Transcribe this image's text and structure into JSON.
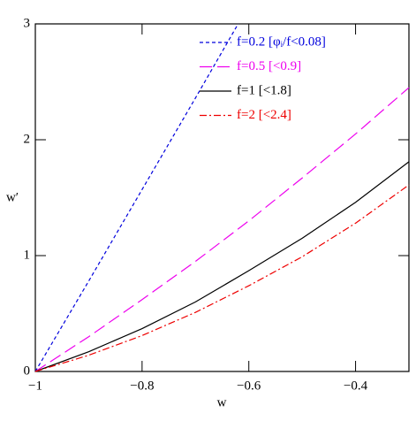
{
  "chart_data": {
    "type": "line",
    "x_label": "w",
    "y_label": "w′",
    "series": [
      {
        "name": "f=0.2 [φᵢ/f<0.08]",
        "color": "#0000dd",
        "dash": "4 3",
        "x": [
          -1,
          -0.9,
          -0.8,
          -0.7,
          -0.62
        ],
        "values": [
          0,
          0.78,
          1.57,
          2.36,
          3.0
        ]
      },
      {
        "name": "f=0.5 [<0.9]",
        "color": "#ee00ee",
        "dash": "14 6",
        "x": [
          -1,
          -0.9,
          -0.8,
          -0.7,
          -0.6,
          -0.5,
          -0.4,
          -0.3
        ],
        "values": [
          0,
          0.3,
          0.62,
          0.95,
          1.3,
          1.67,
          2.05,
          2.45
        ]
      },
      {
        "name": "f=1 [<1.8]",
        "color": "#000000",
        "dash": "none",
        "x": [
          -1,
          -0.9,
          -0.8,
          -0.7,
          -0.6,
          -0.5,
          -0.4,
          -0.3
        ],
        "values": [
          0,
          0.17,
          0.37,
          0.6,
          0.87,
          1.15,
          1.46,
          1.81
        ]
      },
      {
        "name": "f=2 [<2.4]",
        "color": "#ee0000",
        "dash": "8 3 2 3",
        "x": [
          -1,
          -0.9,
          -0.8,
          -0.7,
          -0.6,
          -0.5,
          -0.4,
          -0.3
        ],
        "values": [
          0,
          0.14,
          0.31,
          0.51,
          0.74,
          0.99,
          1.28,
          1.61
        ]
      }
    ],
    "xlim": [
      -1,
      -0.3
    ],
    "ylim": [
      0,
      3
    ],
    "xticks": [
      {
        "value": -1,
        "label": "−1"
      },
      {
        "value": -0.8,
        "label": "−0.8"
      },
      {
        "value": -0.6,
        "label": "−0.6"
      },
      {
        "value": -0.4,
        "label": "−0.4"
      }
    ],
    "yticks": [
      0,
      1,
      2,
      3
    ],
    "legend": "upper right"
  }
}
